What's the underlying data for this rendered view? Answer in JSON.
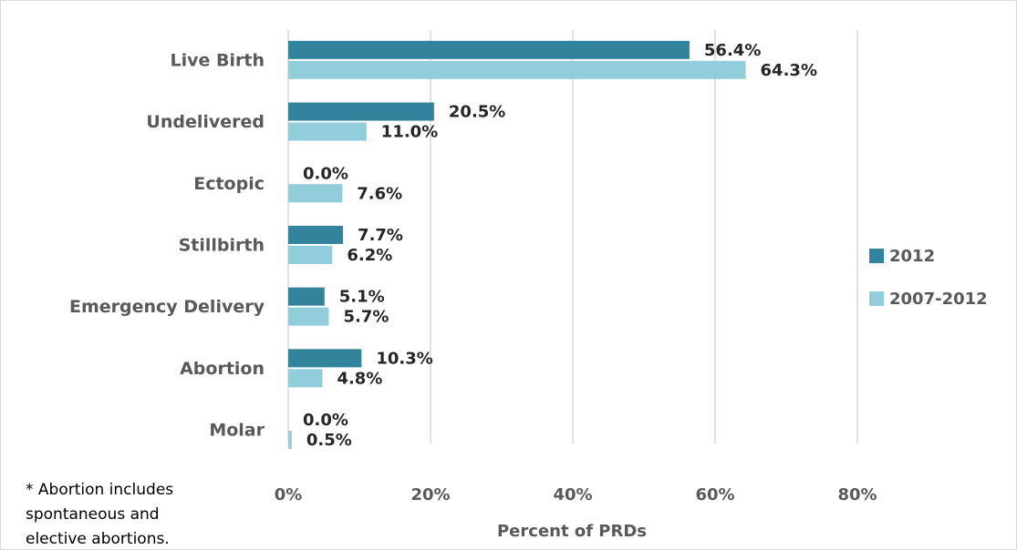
{
  "chart_data": {
    "type": "bar",
    "orientation": "horizontal",
    "categories": [
      "Live Birth",
      "Undelivered",
      "Ectopic",
      "Stillbirth",
      "Emergency Delivery",
      "Abortion",
      "Molar"
    ],
    "series": [
      {
        "name": "2012",
        "color": "#31849b",
        "values": [
          56.4,
          20.5,
          0.0,
          7.7,
          5.1,
          10.3,
          0.0
        ],
        "value_labels": [
          "56.4%",
          "20.5%",
          "0.0%",
          "7.7%",
          "5.1%",
          "10.3%",
          "0.0%"
        ]
      },
      {
        "name": "2007-2012",
        "color": "#92cddc",
        "values": [
          64.3,
          11.0,
          7.6,
          6.2,
          5.7,
          4.8,
          0.5
        ],
        "value_labels": [
          "64.3%",
          "11.0%",
          "7.6%",
          "6.2%",
          "5.7%",
          "4.8%",
          "0.5%"
        ]
      }
    ],
    "xlabel": "Percent of PRDs",
    "xlim": [
      0,
      80
    ],
    "xticks": [
      {
        "value": 0,
        "label": "0%"
      },
      {
        "value": 20,
        "label": "20%"
      },
      {
        "value": 40,
        "label": "40%"
      },
      {
        "value": 60,
        "label": "60%"
      },
      {
        "value": 80,
        "label": "80%"
      }
    ],
    "grid": true,
    "legend": "right",
    "annotation": [
      "* Abortion includes",
      "spontaneous and",
      "elective abortions."
    ]
  }
}
